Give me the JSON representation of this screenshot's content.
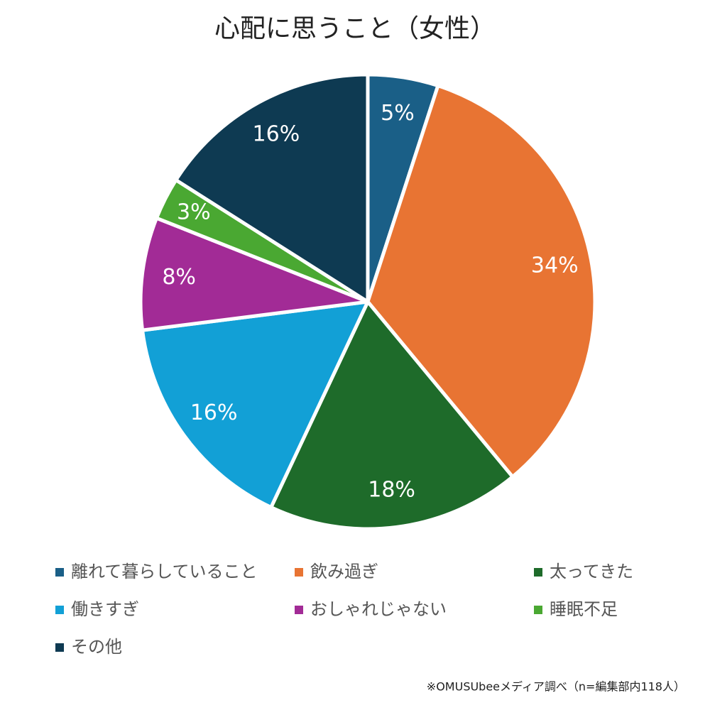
{
  "chart_data": {
    "type": "pie",
    "title": "心配に思うこと（女性）",
    "categories": [
      "離れて暮らしていること",
      "飲み過ぎ",
      "太ってきた",
      "働きすぎ",
      "おしゃれじゃない",
      "睡眠不足",
      "その他"
    ],
    "values": [
      5,
      34,
      18,
      16,
      8,
      3,
      16
    ],
    "value_labels": [
      "5%",
      "34%",
      "18%",
      "16%",
      "8%",
      "3%",
      "16%"
    ],
    "colors": [
      "#1a5f87",
      "#e87433",
      "#1e6b2a",
      "#12a0d6",
      "#a22b96",
      "#4aa832",
      "#0e3a52"
    ],
    "legend": "bottom",
    "note": "※OMUSUbeeメディア調べ（n=編集部内118人）"
  }
}
